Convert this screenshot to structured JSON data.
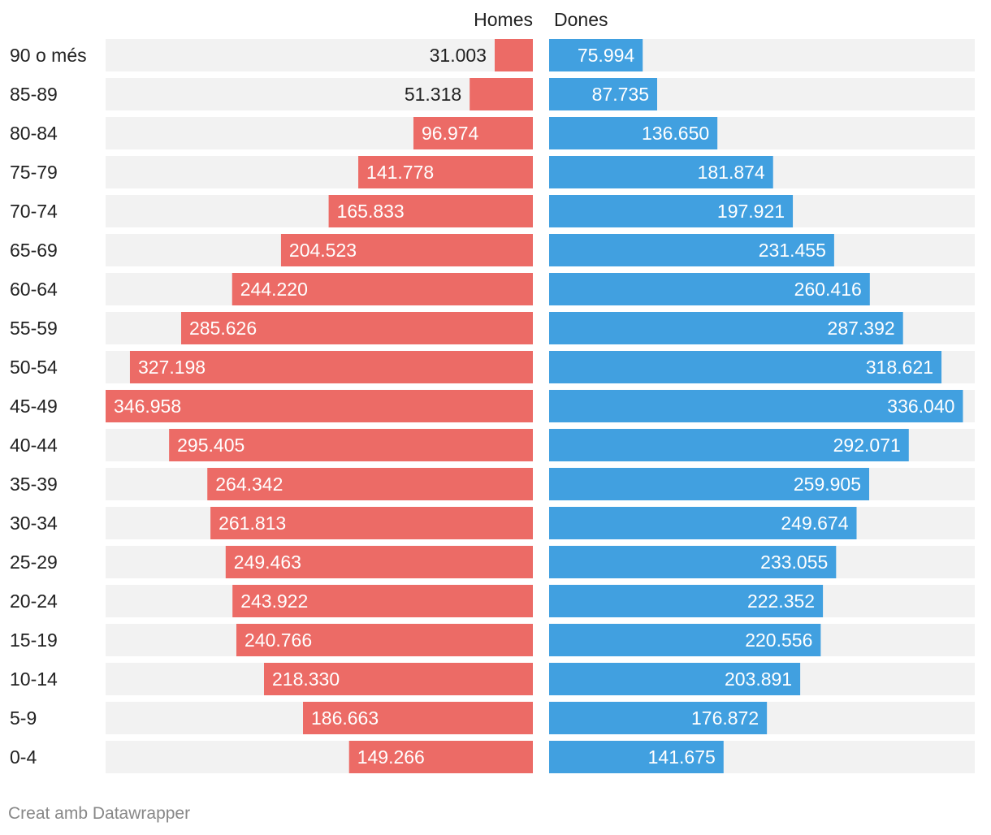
{
  "chart_data": {
    "type": "bar",
    "subtype": "population-pyramid",
    "categories": [
      "90 o més",
      "85-89",
      "80-84",
      "75-79",
      "70-74",
      "65-69",
      "60-64",
      "55-59",
      "50-54",
      "45-49",
      "40-44",
      "35-39",
      "30-34",
      "25-29",
      "20-24",
      "15-19",
      "10-14",
      "5-9",
      "0-4"
    ],
    "series": [
      {
        "name": "Homes",
        "color": "#ec6b66",
        "values": [
          31003,
          51318,
          96974,
          141778,
          165833,
          204523,
          244220,
          285626,
          327198,
          346958,
          295405,
          264342,
          261813,
          249463,
          243922,
          240766,
          218330,
          186663,
          149266
        ],
        "labels": [
          "31.003",
          "51.318",
          "96.974",
          "141.778",
          "165.833",
          "204.523",
          "244.220",
          "285.626",
          "327.198",
          "346.958",
          "295.405",
          "264.342",
          "261.813",
          "249.463",
          "243.922",
          "240.766",
          "218.330",
          "186.663",
          "149.266"
        ]
      },
      {
        "name": "Dones",
        "color": "#41a0e0",
        "values": [
          75994,
          87735,
          136650,
          181874,
          197921,
          231455,
          260416,
          287392,
          318621,
          336040,
          292071,
          259905,
          249674,
          233055,
          222352,
          220556,
          203891,
          176872,
          141675
        ],
        "labels": [
          "75.994",
          "87.735",
          "136.650",
          "181.874",
          "197.921",
          "231.455",
          "260.416",
          "287.392",
          "318.621",
          "336.040",
          "292.071",
          "259.905",
          "249.674",
          "233.055",
          "222.352",
          "220.556",
          "203.891",
          "176.872",
          "141.675"
        ]
      }
    ],
    "xlim": [
      0,
      346958
    ],
    "background_track_color": "#f2f2f2"
  },
  "footer": {
    "credit": "Creat amb Datawrapper"
  }
}
